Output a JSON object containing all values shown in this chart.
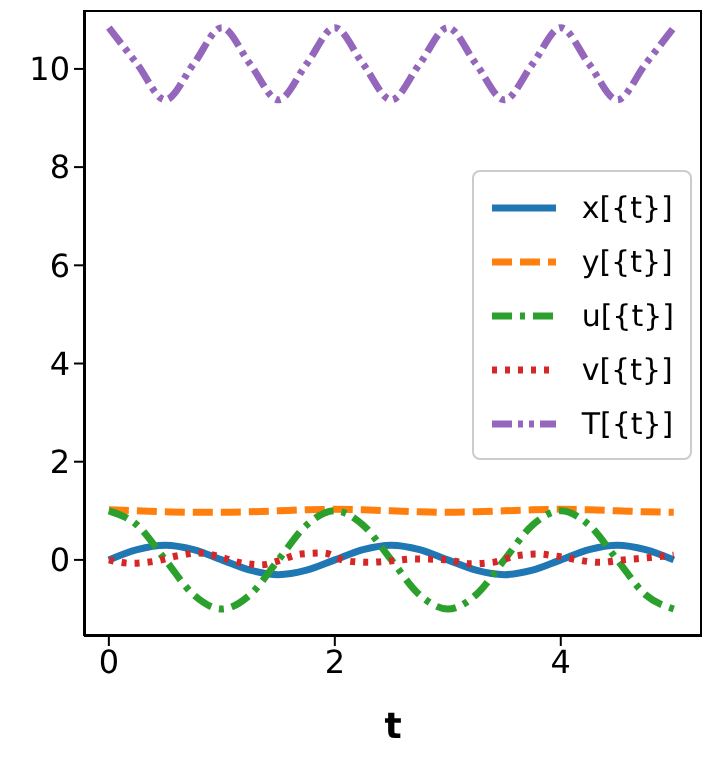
{
  "chart_data": {
    "type": "line",
    "xlabel": "t",
    "xlim": [
      -0.22,
      5.25
    ],
    "xticks": [
      0,
      2,
      4
    ],
    "ylim": [
      -1.55,
      11.2
    ],
    "yticks": [
      0,
      2,
      4,
      6,
      8,
      10
    ],
    "legend": "right",
    "marker": "none",
    "x": [
      0,
      0.25,
      0.5,
      0.75,
      1,
      1.25,
      1.5,
      1.75,
      2,
      2.25,
      2.5,
      2.75,
      3,
      3.25,
      3.5,
      3.75,
      4,
      4.25,
      4.5,
      4.75,
      5
    ],
    "series": [
      {
        "name": "x[{t}]",
        "color": "#1f77b4",
        "line_style": "solid",
        "values": [
          0,
          0.21,
          0.3,
          0.21,
          0,
          -0.21,
          -0.3,
          -0.21,
          0,
          0.21,
          0.3,
          0.21,
          0,
          -0.21,
          -0.3,
          -0.21,
          0,
          0.21,
          0.3,
          0.21,
          0
        ]
      },
      {
        "name": "y[{t}]",
        "color": "#ff7f0e",
        "line_style": "dashed",
        "values": [
          1.02,
          1,
          0.98,
          0.97,
          0.97,
          0.98,
          1,
          1.02,
          1.03,
          1.02,
          1,
          0.98,
          0.97,
          0.98,
          1,
          1.02,
          1.03,
          1.02,
          1,
          0.98,
          0.97
        ]
      },
      {
        "name": "u[{t}]",
        "color": "#2ca02c",
        "line_style": "dashdot",
        "values": [
          1,
          0.71,
          0,
          -0.71,
          -1,
          -0.71,
          0,
          0.71,
          1,
          0.71,
          0,
          -0.71,
          -1,
          -0.71,
          0,
          0.71,
          1,
          0.71,
          0,
          -0.71,
          -1
        ]
      },
      {
        "name": "v[{t}]",
        "color": "#d62728",
        "line_style": "dotted",
        "x": [
          0,
          0.2,
          0.4,
          0.6,
          0.8,
          1,
          1.15,
          1.35,
          1.5,
          1.7,
          1.9,
          2.1,
          2.3,
          2.5,
          2.7,
          3,
          3.2,
          3.4,
          3.6,
          3.8,
          3.95,
          4.35,
          4.55,
          4.8,
          5
        ],
        "values": [
          0,
          -0.07,
          -0.03,
          0.08,
          0.14,
          0.05,
          -0.05,
          -0.1,
          -0.02,
          0.12,
          0.14,
          -0.02,
          -0.05,
          -0.02,
          0.02,
          0,
          -0.08,
          -0.05,
          0.08,
          0.12,
          0.08,
          -0.05,
          0,
          0.05,
          0.1
        ]
      },
      {
        "name": "T[{t}]",
        "color": "#9467bd",
        "line_style": "dashdotdot",
        "values": [
          10.84,
          10.1,
          9.37,
          10.1,
          10.84,
          10.1,
          9.37,
          10.1,
          10.84,
          10.1,
          9.37,
          10.1,
          10.84,
          10.1,
          9.37,
          10.1,
          10.84,
          10.1,
          9.37,
          10.1,
          10.84
        ]
      }
    ]
  }
}
